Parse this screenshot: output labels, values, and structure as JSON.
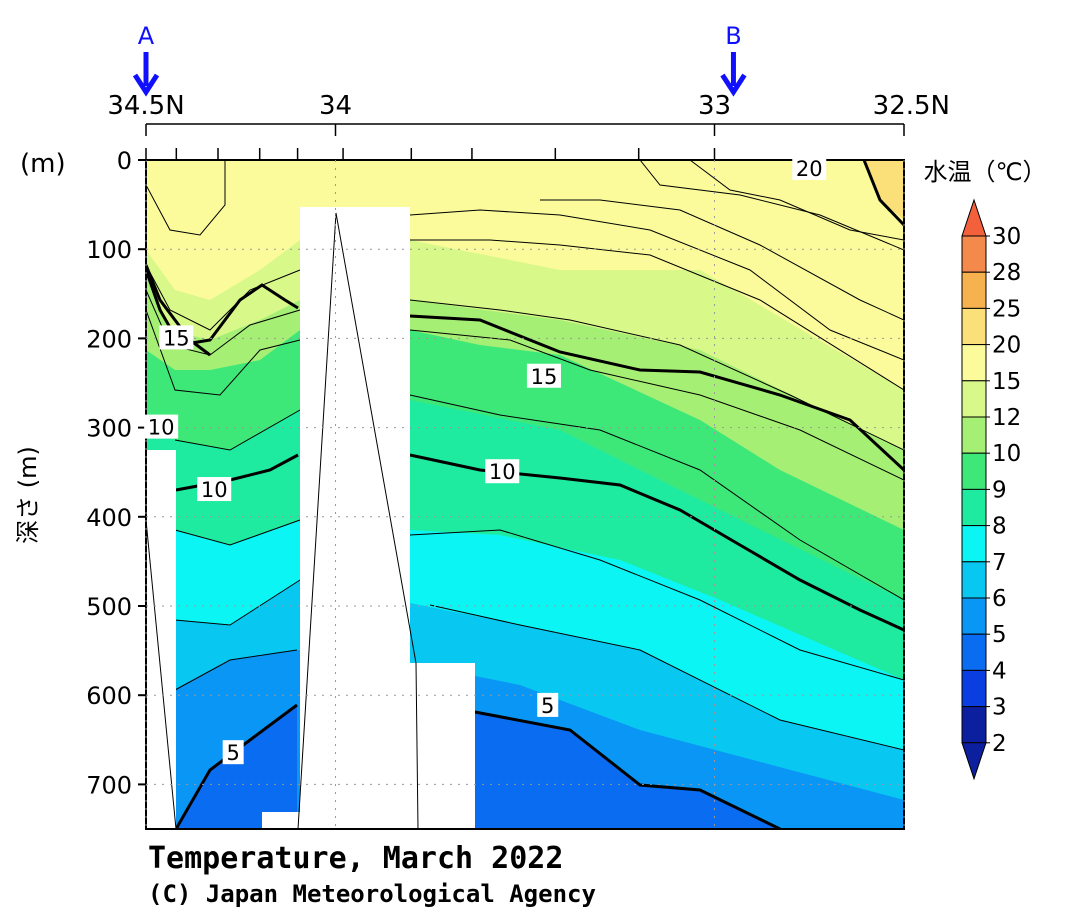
{
  "chart_data": {
    "type": "heatmap",
    "title": "Temperature, March 2022",
    "credit": "(C) Japan Meteorological Agency",
    "colorbar_title": "水温（℃）",
    "ylabel": "深さ (m)",
    "y_unit_label": "(m)",
    "x_axis": {
      "ticks": [
        {
          "value": 34.5,
          "label": "34.5N"
        },
        {
          "value": 34.0,
          "label": "34"
        },
        {
          "value": 33.0,
          "label": "33"
        },
        {
          "value": 32.5,
          "label": "32.5N"
        }
      ],
      "range": [
        34.5,
        32.5
      ],
      "station_latitudes": [
        34.5,
        34.42,
        34.31,
        34.2,
        34.1,
        33.98,
        33.8,
        33.64,
        33.42,
        33.2,
        33.0
      ]
    },
    "y_axis": {
      "ticks": [
        0,
        100,
        200,
        300,
        400,
        500,
        600,
        700
      ],
      "range": [
        0,
        750
      ],
      "inverted": true
    },
    "markers": [
      {
        "label": "A",
        "lat": 34.5
      },
      {
        "label": "B",
        "lat": 32.95
      }
    ],
    "colorbar": {
      "levels": [
        "2",
        "3",
        "4",
        "5",
        "6",
        "7",
        "8",
        "9",
        "10",
        "12",
        "15",
        "20",
        "25",
        "28",
        "30"
      ],
      "colors": [
        "#0c1f9e",
        "#0a3ee0",
        "#0a6cf0",
        "#0a96f5",
        "#08c8f2",
        "#0cf5f5",
        "#1eeba0",
        "#3ee878",
        "#a6ef75",
        "#d8f88a",
        "#fbfb9c",
        "#fbe07a",
        "#f6b24e",
        "#f4894c",
        "#f2603c"
      ]
    },
    "contour_labels": [
      {
        "text": "20",
        "lat": 32.75,
        "depth": 10
      },
      {
        "text": "15",
        "lat": 34.42,
        "depth": 200
      },
      {
        "text": "15",
        "lat": 33.45,
        "depth": 243
      },
      {
        "text": "10",
        "lat": 34.32,
        "depth": 370
      },
      {
        "text": "10",
        "lat": 33.56,
        "depth": 350
      },
      {
        "text": "5",
        "lat": 34.27,
        "depth": 665
      },
      {
        "text": "5",
        "lat": 33.44,
        "depth": 612
      },
      {
        "text": "10",
        "lat": 34.46,
        "depth": 300
      }
    ],
    "boundaries_15C": [
      [
        34.5,
        120
      ],
      [
        34.47,
        180
      ],
      [
        34.42,
        200
      ],
      [
        34.3,
        185
      ],
      [
        34.18,
        140
      ],
      [
        34.1,
        170
      ],
      [
        34.05,
        185
      ],
      [
        33.82,
        172
      ],
      [
        33.7,
        190
      ],
      [
        33.4,
        250
      ],
      [
        33.0,
        238
      ],
      [
        32.5,
        350
      ]
    ],
    "boundaries_10C": [
      [
        34.42,
        365
      ],
      [
        34.2,
        360
      ],
      [
        34.1,
        330
      ],
      [
        33.82,
        330
      ],
      [
        33.56,
        350
      ],
      [
        33.3,
        380
      ],
      [
        33.1,
        420
      ],
      [
        32.9,
        480
      ],
      [
        32.5,
        530
      ]
    ],
    "boundaries_5C": [
      [
        34.42,
        748
      ],
      [
        34.3,
        690
      ],
      [
        34.1,
        610
      ],
      [
        33.8,
        615
      ],
      [
        33.6,
        640
      ],
      [
        33.5,
        700
      ],
      [
        33.3,
        760
      ]
    ]
  }
}
